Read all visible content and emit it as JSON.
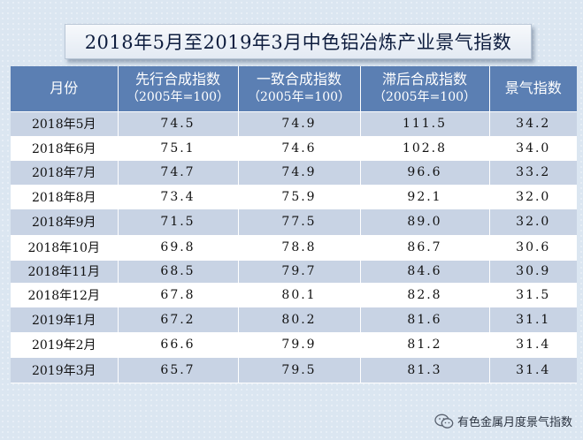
{
  "title": "2018年5月至2019年3月中色铝冶炼产业景气指数",
  "header": {
    "month": "月份",
    "leading": "先行合成指数",
    "leading_sub": "（2005年=100）",
    "coincident": "一致合成指数",
    "coincident_sub": "（2005年=100）",
    "lagging": "滞后合成指数",
    "lagging_sub": "（2005年=100）",
    "index": "景气指数"
  },
  "rows": [
    {
      "month": "2018年5月",
      "leading": "74.5",
      "coincident": "74.9",
      "lagging": "111.5",
      "index": "34.2"
    },
    {
      "month": "2018年6月",
      "leading": "75.1",
      "coincident": "74.6",
      "lagging": "102.8",
      "index": "34.0"
    },
    {
      "month": "2018年7月",
      "leading": "74.7",
      "coincident": "74.9",
      "lagging": "96.6",
      "index": "33.2"
    },
    {
      "month": "2018年8月",
      "leading": "73.4",
      "coincident": "75.9",
      "lagging": "92.1",
      "index": "32.0"
    },
    {
      "month": "2018年9月",
      "leading": "71.5",
      "coincident": "77.5",
      "lagging": "89.0",
      "index": "32.0"
    },
    {
      "month": "2018年10月",
      "leading": "69.8",
      "coincident": "78.8",
      "lagging": "86.7",
      "index": "30.6"
    },
    {
      "month": "2018年11月",
      "leading": "68.5",
      "coincident": "79.7",
      "lagging": "84.6",
      "index": "30.9"
    },
    {
      "month": "2018年12月",
      "leading": "67.8",
      "coincident": "80.1",
      "lagging": "82.8",
      "index": "31.5"
    },
    {
      "month": "2019年1月",
      "leading": "67.2",
      "coincident": "80.2",
      "lagging": "81.6",
      "index": "31.1"
    },
    {
      "month": "2019年2月",
      "leading": "66.6",
      "coincident": "79.9",
      "lagging": "81.2",
      "index": "31.4"
    },
    {
      "month": "2019年3月",
      "leading": "65.7",
      "coincident": "79.5",
      "lagging": "81.3",
      "index": "31.4"
    }
  ],
  "watermark": {
    "icon": "wechat-icon",
    "text": "有色金属月度景气指数"
  },
  "colors": {
    "header_bg": "#5b7fb3",
    "band_bg": "#c8d3e4",
    "page_bg": "#dbe6f1"
  }
}
